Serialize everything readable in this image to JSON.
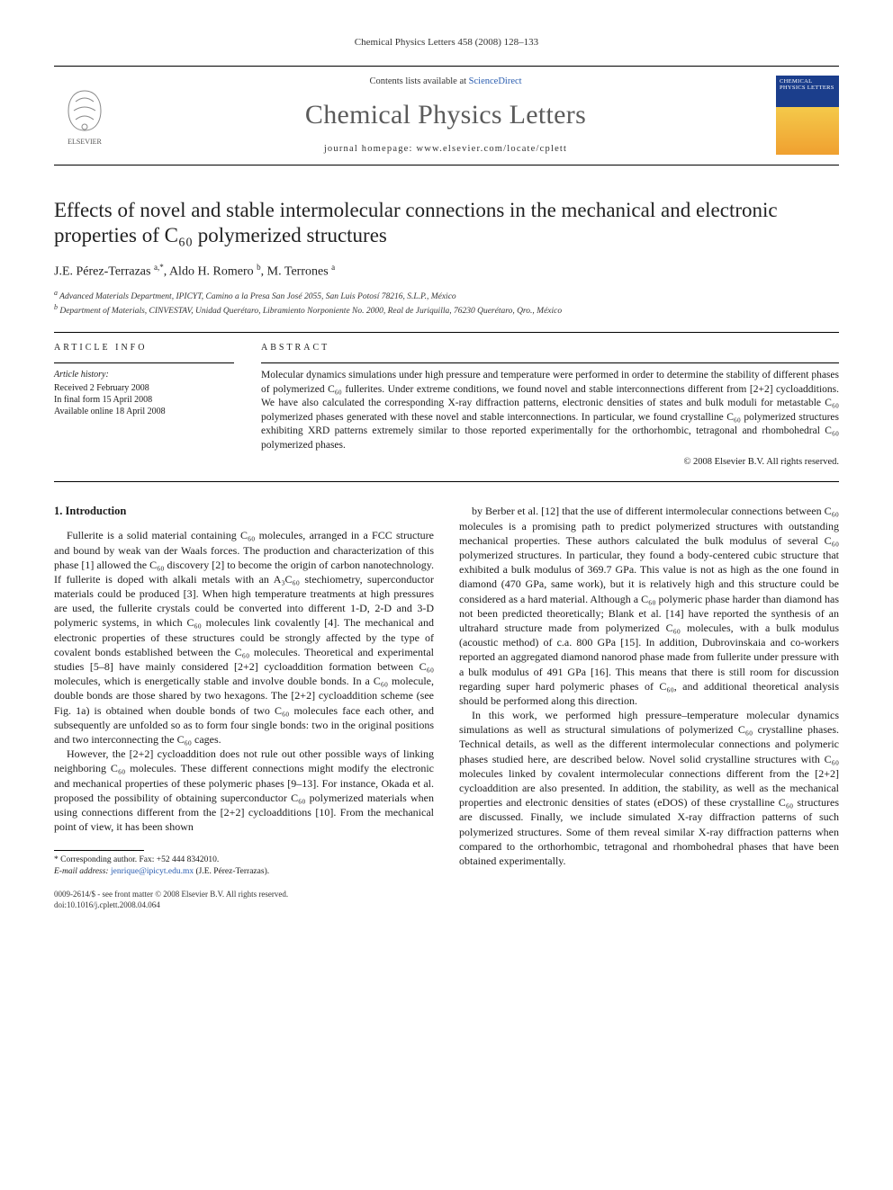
{
  "header": {
    "citation": "Chemical Physics Letters 458 (2008) 128–133",
    "contents_prefix": "Contents lists available at ",
    "contents_link": "ScienceDirect",
    "journal_name": "Chemical Physics Letters",
    "homepage_prefix": "journal homepage: ",
    "homepage_url": "www.elsevier.com/locate/cplett",
    "publisher": "ELSEVIER",
    "cover_text": "CHEMICAL PHYSICS LETTERS"
  },
  "title": "Effects of novel and stable intermolecular connections in the mechanical and electronic properties of C₆₀ polymerized structures",
  "authors_html": "J.E. Pérez-Terrazas <sup>a,*</sup>, Aldo H. Romero <sup>b</sup>, M. Terrones <sup>a</sup>",
  "affiliations": {
    "a": "Advanced Materials Department, IPICYT, Camino a la Presa San José 2055, San Luis Potosí 78216, S.L.P., México",
    "b": "Department of Materials, CINVESTAV, Unidad Querétaro, Libramiento Norponiente No. 2000, Real de Juriquilla, 76230 Querétaro, Qro., México"
  },
  "article_info": {
    "heading": "ARTICLE INFO",
    "history_label": "Article history:",
    "received": "Received 2 February 2008",
    "final_form": "In final form 15 April 2008",
    "online": "Available online 18 April 2008"
  },
  "abstract": {
    "heading": "ABSTRACT",
    "body": "Molecular dynamics simulations under high pressure and temperature were performed in order to determine the stability of different phases of polymerized C₆₀ fullerites. Under extreme conditions, we found novel and stable interconnections different from [2+2] cycloadditions. We have also calculated the corresponding X-ray diffraction patterns, electronic densities of states and bulk moduli for metastable C₆₀ polymerized phases generated with these novel and stable interconnections. In particular, we found crystalline C₆₀ polymerized structures exhibiting XRD patterns extremely similar to those reported experimentally for the orthorhombic, tetragonal and rhombohedral C₆₀ polymerized phases.",
    "copyright": "© 2008 Elsevier B.V. All rights reserved."
  },
  "section1": {
    "heading": "1. Introduction",
    "para1": "Fullerite is a solid material containing C₆₀ molecules, arranged in a FCC structure and bound by weak van der Waals forces. The production and characterization of this phase [1] allowed the C₆₀ discovery [2] to become the origin of carbon nanotechnology. If fullerite is doped with alkali metals with an A₃C₆₀ stechiometry, superconductor materials could be produced [3]. When high temperature treatments at high pressures are used, the fullerite crystals could be converted into different 1-D, 2-D and 3-D polymeric systems, in which C₆₀ molecules link covalently [4]. The mechanical and electronic properties of these structures could be strongly affected by the type of covalent bonds established between the C₆₀ molecules. Theoretical and experimental studies [5–8] have mainly considered [2+2] cycloaddition formation between C₆₀ molecules, which is energetically stable and involve double bonds. In a C₆₀ molecule, double bonds are those shared by two hexagons. The [2+2] cycloaddition scheme (see Fig. 1a) is obtained when double bonds of two C₆₀ molecules face each other, and subsequently are unfolded so as to form four single bonds: two in the original positions and two interconnecting the C₆₀ cages.",
    "para2": "However, the [2+2] cycloaddition does not rule out other possible ways of linking neighboring C₆₀ molecules. These different connections might modify the electronic and mechanical properties of these polymeric phases [9–13]. For instance, Okada et al. proposed the possibility of obtaining superconductor C₆₀ polymerized materials when using connections different from the [2+2] cycloadditions [10]. From the mechanical point of view, it has been shown",
    "para3": "by Berber et al. [12] that the use of different intermolecular connections between C₆₀ molecules is a promising path to predict polymerized structures with outstanding mechanical properties. These authors calculated the bulk modulus of several C₆₀ polymerized structures. In particular, they found a body-centered cubic structure that exhibited a bulk modulus of 369.7 GPa. This value is not as high as the one found in diamond (470 GPa, same work), but it is relatively high and this structure could be considered as a hard material. Although a C₆₀ polymeric phase harder than diamond has not been predicted theoretically; Blank et al. [14] have reported the synthesis of an ultrahard structure made from polymerized C₆₀ molecules, with a bulk modulus (acoustic method) of c.a. 800 GPa [15]. In addition, Dubrovinskaia and co-workers reported an aggregated diamond nanorod phase made from fullerite under pressure with a bulk modulus of 491 GPa [16]. This means that there is still room for discussion regarding super hard polymeric phases of C₆₀, and additional theoretical analysis should be performed along this direction.",
    "para4": "In this work, we performed high pressure–temperature molecular dynamics simulations as well as structural simulations of polymerized C₆₀ crystalline phases. Technical details, as well as the different intermolecular connections and polymeric phases studied here, are described below. Novel solid crystalline structures with C₆₀ molecules linked by covalent intermolecular connections different from the [2+2] cycloaddition are also presented. In addition, the stability, as well as the mechanical properties and electronic densities of states (eDOS) of these crystalline C₆₀ structures are discussed. Finally, we include simulated X-ray diffraction patterns of such polymerized structures. Some of them reveal similar X-ray diffraction patterns when compared to the orthorhombic, tetragonal and rhombohedral phases that have been obtained experimentally."
  },
  "corresponding": {
    "label": "* Corresponding author. Fax: +52 444 8342010.",
    "email_label": "E-mail address:",
    "email": "jenrique@ipicyt.edu.mx",
    "email_suffix": "(J.E. Pérez-Terrazas)."
  },
  "footer": {
    "line1": "0009-2614/$ - see front matter © 2008 Elsevier B.V. All rights reserved.",
    "line2": "doi:10.1016/j.cplett.2008.04.064"
  },
  "colors": {
    "link": "#2a5db0",
    "text": "#1a1a1a",
    "journal_gray": "#5b5b5b",
    "cover_blue": "#1b3e8c",
    "cover_orange": "#f0a030"
  }
}
